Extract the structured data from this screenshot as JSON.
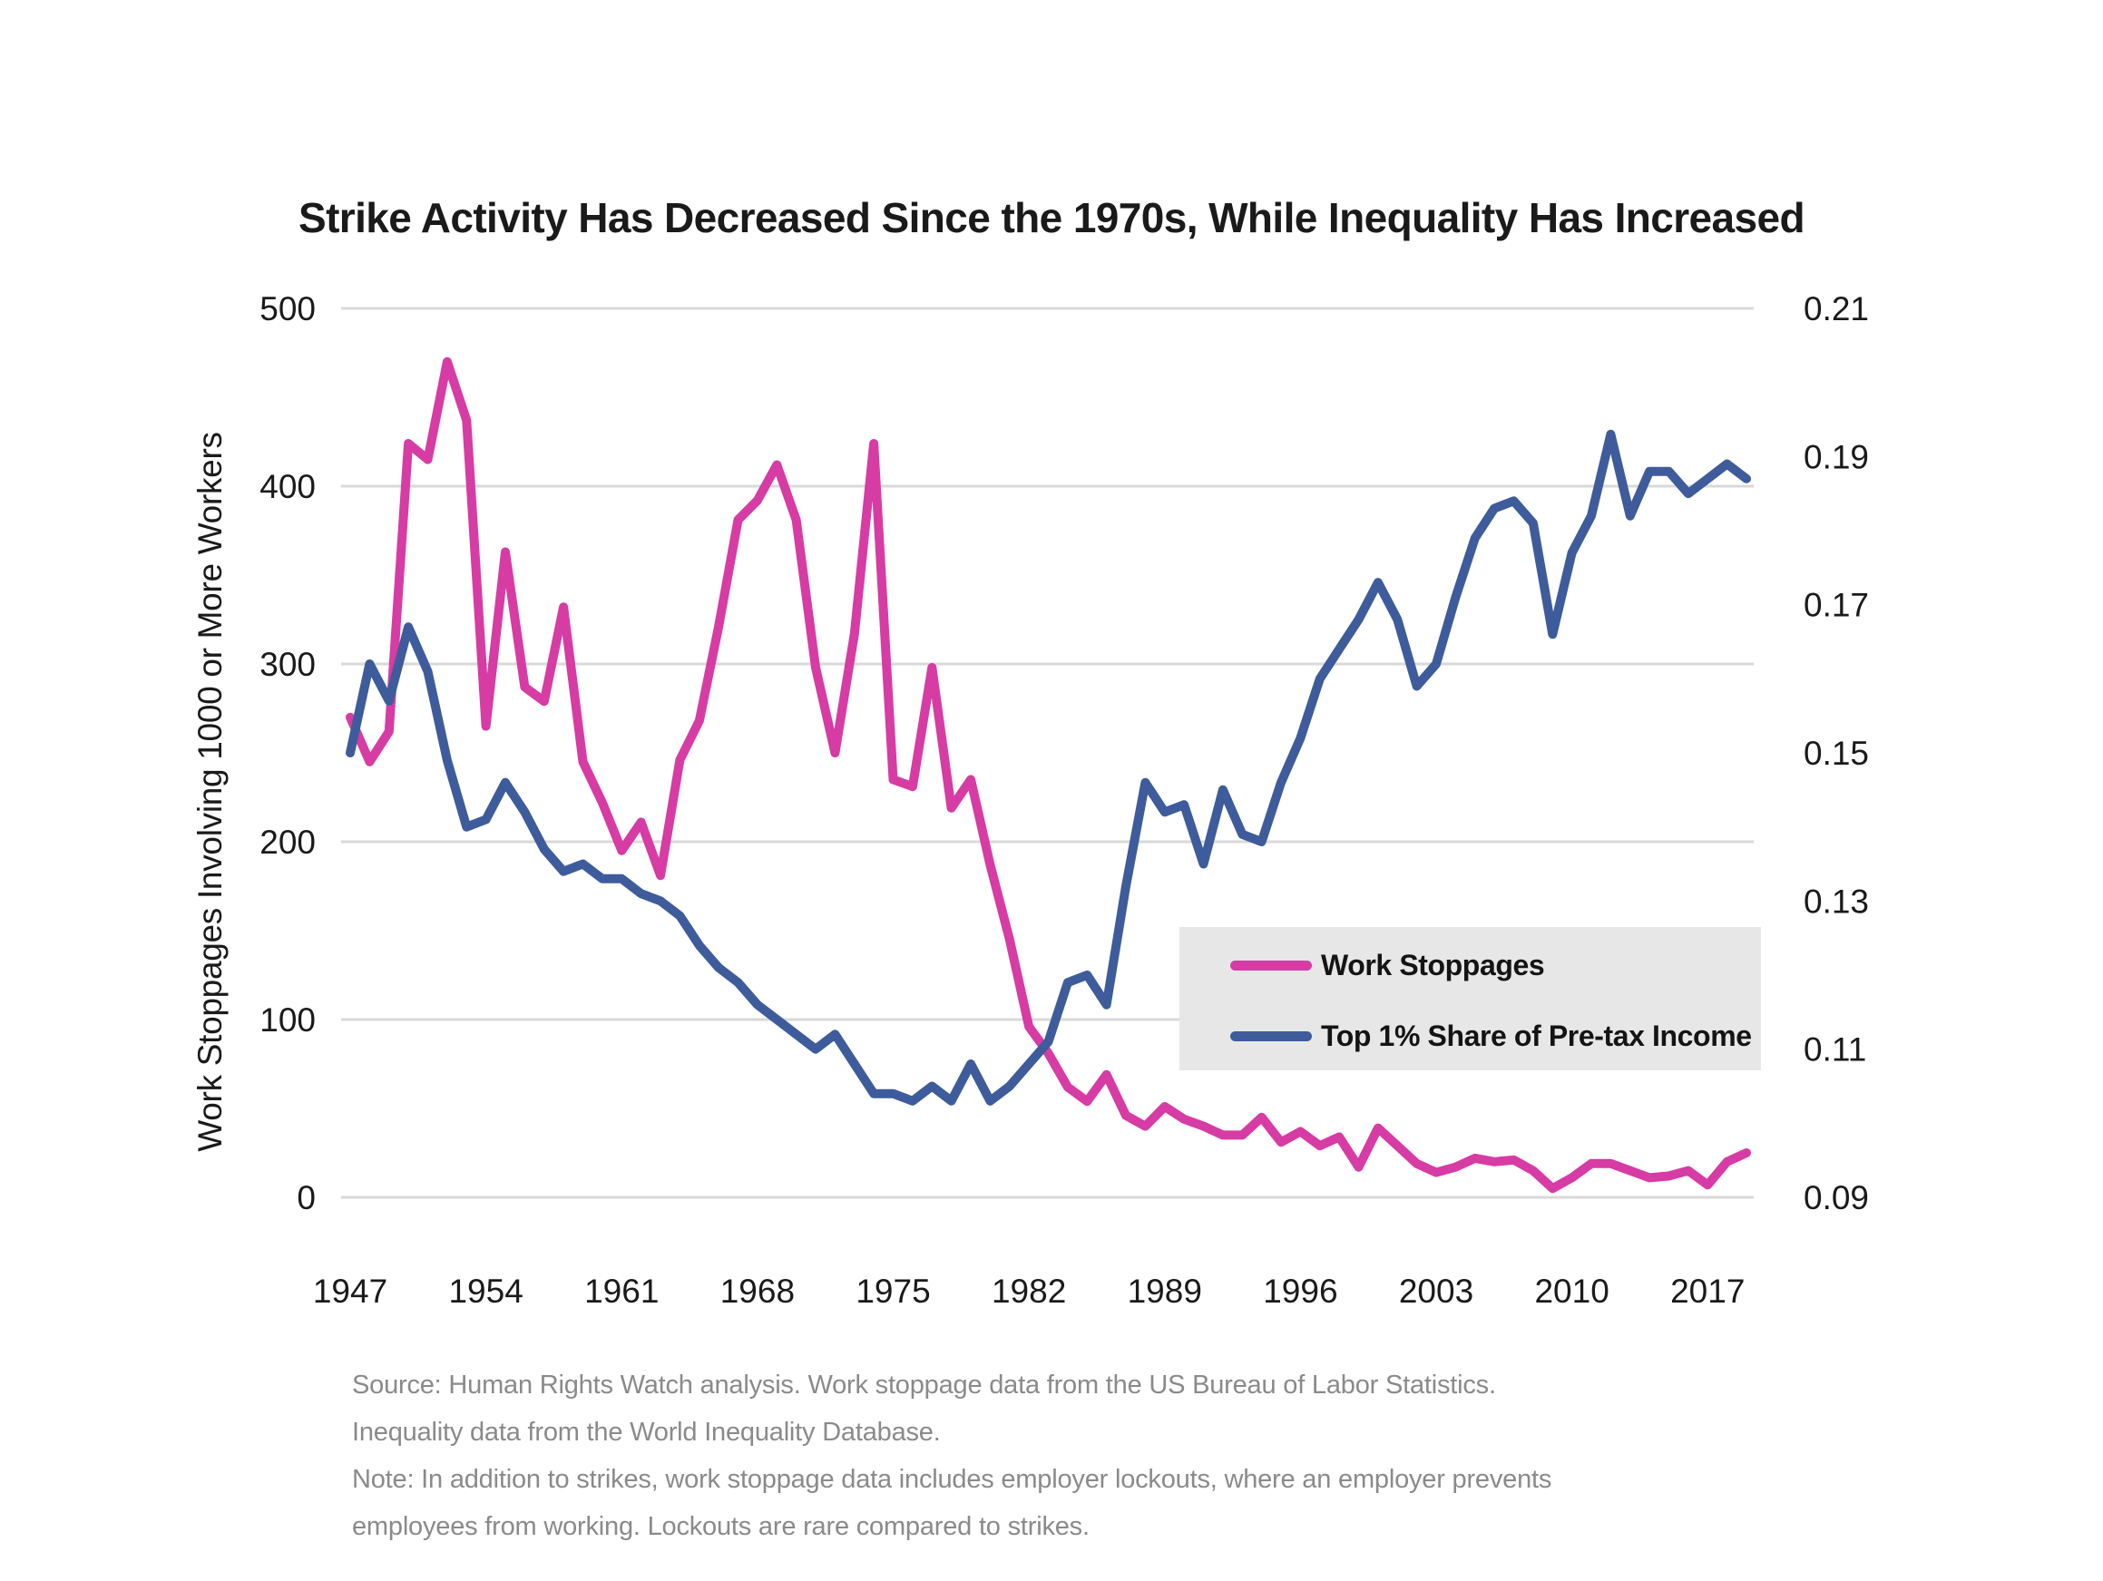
{
  "title": "Strike Activity Has Decreased Since the 1970s, While Inequality Has Increased",
  "left_axis": {
    "title": "Work Stoppages Involving 1000 or More Workers",
    "ticks": [
      500,
      400,
      300,
      200,
      100,
      0
    ]
  },
  "right_axis": {
    "ticks": [
      "0.21",
      "0.19",
      "0.17",
      "0.15",
      "0.13",
      "0.11",
      "0.09"
    ]
  },
  "x_axis": {
    "tick_years": [
      1947,
      1954,
      1961,
      1968,
      1975,
      1982,
      1989,
      1996,
      2003,
      2010,
      2017
    ]
  },
  "legend": {
    "items": [
      {
        "label": "Work Stoppages",
        "color": "#d73ba4"
      },
      {
        "label": "Top 1% Share of Pre-tax Income",
        "color": "#3e5c9b"
      }
    ]
  },
  "footer": {
    "lines": [
      "Source: Human Rights Watch analysis. Work stoppage data from the US Bureau of Labor Statistics.",
      "Inequality data from the World Inequality Database.",
      "Note: In addition to strikes, work stoppage data includes employer lockouts, where an employer prevents",
      "employees from working. Lockouts are rare compared to strikes."
    ]
  },
  "colors": {
    "work_stoppages_line": "#d73ba4",
    "top1_share_line": "#3e5c9b",
    "gridline": "#d9d9d9",
    "legend_background": "#e8e7e7",
    "text": "#1a1a1a",
    "footer_text": "#8a8a8a"
  },
  "chart_data": {
    "type": "line",
    "title": "Strike Activity Has Decreased Since the 1970s, While Inequality Has Increased",
    "xlabel": "",
    "ylabel_left": "Work Stoppages Involving 1000 or More Workers",
    "ylabel_right": "Top 1% Share of Pre-tax Income",
    "left_ylim": [
      0,
      500
    ],
    "right_ylim": [
      0.09,
      0.21
    ],
    "grid": "horizontal",
    "legend_position": "center-right",
    "x": [
      1947,
      1948,
      1949,
      1950,
      1951,
      1952,
      1953,
      1954,
      1955,
      1956,
      1957,
      1958,
      1959,
      1960,
      1961,
      1962,
      1963,
      1964,
      1965,
      1966,
      1967,
      1968,
      1969,
      1970,
      1971,
      1972,
      1973,
      1974,
      1975,
      1976,
      1977,
      1978,
      1979,
      1980,
      1981,
      1982,
      1983,
      1984,
      1985,
      1986,
      1987,
      1988,
      1989,
      1990,
      1991,
      1992,
      1993,
      1994,
      1995,
      1996,
      1997,
      1998,
      1999,
      2000,
      2001,
      2002,
      2003,
      2004,
      2005,
      2006,
      2007,
      2008,
      2009,
      2010,
      2011,
      2012,
      2013,
      2014,
      2015,
      2016,
      2017,
      2018,
      2019
    ],
    "series": [
      {
        "name": "Work Stoppages",
        "axis": "left",
        "color": "#d73ba4",
        "values": [
          270,
          245,
          262,
          424,
          415,
          470,
          437,
          265,
          363,
          287,
          279,
          332,
          245,
          222,
          195,
          211,
          181,
          246,
          268,
          321,
          381,
          392,
          412,
          381,
          298,
          250,
          317,
          424,
          235,
          231,
          298,
          219,
          235,
          187,
          145,
          96,
          81,
          62,
          54,
          69,
          46,
          40,
          51,
          44,
          40,
          35,
          35,
          45,
          31,
          37,
          29,
          34,
          17,
          39,
          29,
          19,
          14,
          17,
          22,
          20,
          21,
          15,
          5,
          11,
          19,
          19,
          15,
          11,
          12,
          15,
          7,
          20,
          25
        ]
      },
      {
        "name": "Top 1% Share of Pre-tax Income",
        "axis": "right",
        "color": "#3e5c9b",
        "values": [
          0.15,
          0.162,
          0.157,
          0.167,
          0.161,
          0.149,
          0.14,
          0.141,
          0.146,
          0.142,
          0.137,
          0.134,
          0.135,
          0.133,
          0.133,
          0.131,
          0.13,
          0.128,
          0.124,
          0.121,
          0.119,
          0.116,
          0.114,
          0.112,
          0.11,
          0.112,
          0.108,
          0.104,
          0.104,
          0.103,
          0.105,
          0.103,
          0.108,
          0.103,
          0.105,
          0.108,
          0.111,
          0.119,
          0.12,
          0.116,
          0.132,
          0.146,
          0.142,
          0.143,
          0.135,
          0.145,
          0.139,
          0.138,
          0.146,
          0.152,
          0.16,
          0.164,
          0.168,
          0.173,
          0.168,
          0.159,
          0.162,
          0.171,
          0.179,
          0.183,
          0.184,
          0.181,
          0.166,
          0.177,
          0.182,
          0.193,
          0.182,
          0.188,
          0.188,
          0.185,
          0.187,
          0.189,
          0.187
        ]
      }
    ]
  }
}
